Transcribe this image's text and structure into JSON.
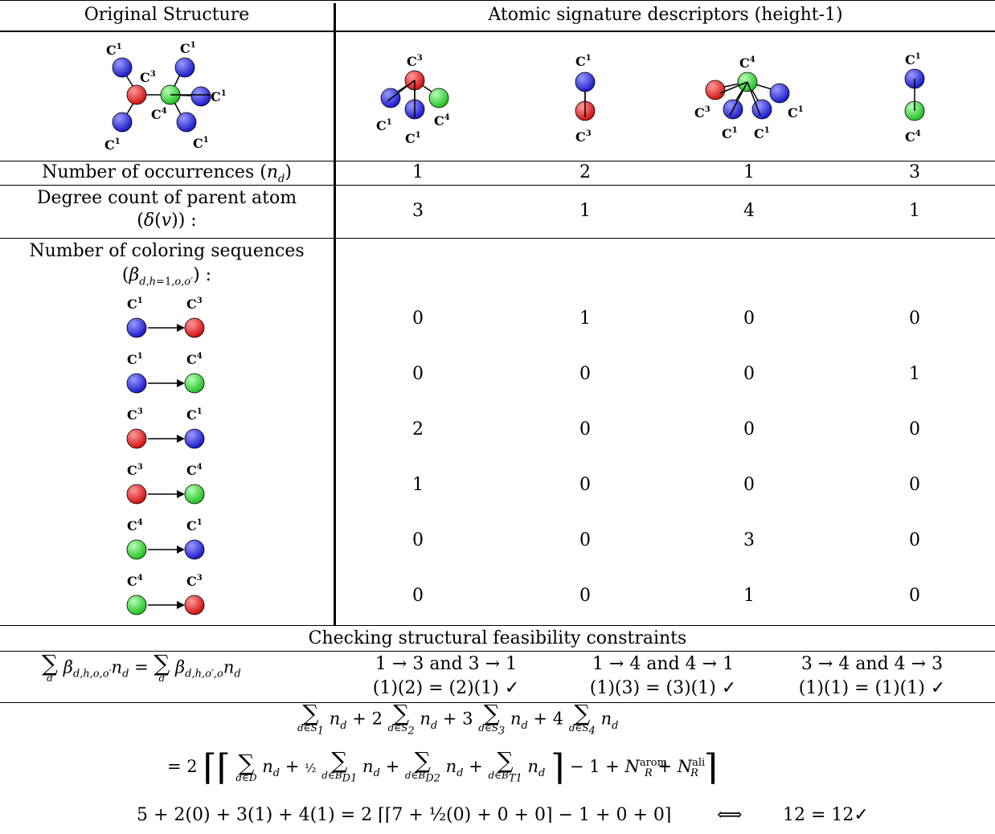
{
  "header": {
    "left": "Original Structure",
    "right": "Atomic signature descriptors (height-1)"
  },
  "atom_labels": {
    "c1": "C1",
    "c3": "C3",
    "c4": "C4"
  },
  "colors": {
    "c1": "#2b2bd6",
    "c3": "#e02020",
    "c4": "#2fd02f",
    "line": "#000000"
  },
  "rows": {
    "occurrences": {
      "label": "Number of occurrences (n_d)",
      "values": [
        "1",
        "2",
        "1",
        "3"
      ]
    },
    "degree": {
      "label_line1": "Degree count of parent atom",
      "label_line2": "(δ(v)) :",
      "values": [
        "3",
        "1",
        "4",
        "1"
      ]
    },
    "coloring": {
      "label_line1": "Number of coloring sequences",
      "label_line2": "(β_{d,h=1,o,o'}) :",
      "sequences": [
        {
          "from": "C1",
          "to": "C3",
          "values": [
            "0",
            "1",
            "0",
            "0"
          ]
        },
        {
          "from": "C1",
          "to": "C4",
          "values": [
            "0",
            "0",
            "0",
            "1"
          ]
        },
        {
          "from": "C3",
          "to": "C1",
          "values": [
            "2",
            "0",
            "0",
            "0"
          ]
        },
        {
          "from": "C3",
          "to": "C4",
          "values": [
            "1",
            "0",
            "0",
            "0"
          ]
        },
        {
          "from": "C4",
          "to": "C1",
          "values": [
            "0",
            "0",
            "3",
            "0"
          ]
        },
        {
          "from": "C4",
          "to": "C3",
          "values": [
            "0",
            "0",
            "1",
            "0"
          ]
        }
      ]
    }
  },
  "checking": {
    "title": "Checking structural feasibility constraints",
    "pairs": [
      {
        "top": "1 → 3 and 3 → 1",
        "bottom": "(1)(2) = (2)(1) ✓"
      },
      {
        "top": "1 → 4 and 4 → 1",
        "bottom": "(1)(3) = (3)(1) ✓"
      },
      {
        "top": "3 → 4 and 4 → 3",
        "bottom": "(1)(1) = (1)(1) ✓"
      }
    ],
    "final_line": "5 + 2(0) + 3(1) + 4(1) = 2 ⌈⌈7 + ½(0) + 0 + 0⌉ − 1 + 0 + 0⌉",
    "iff": "⟺",
    "result": "12 = 12✓"
  }
}
